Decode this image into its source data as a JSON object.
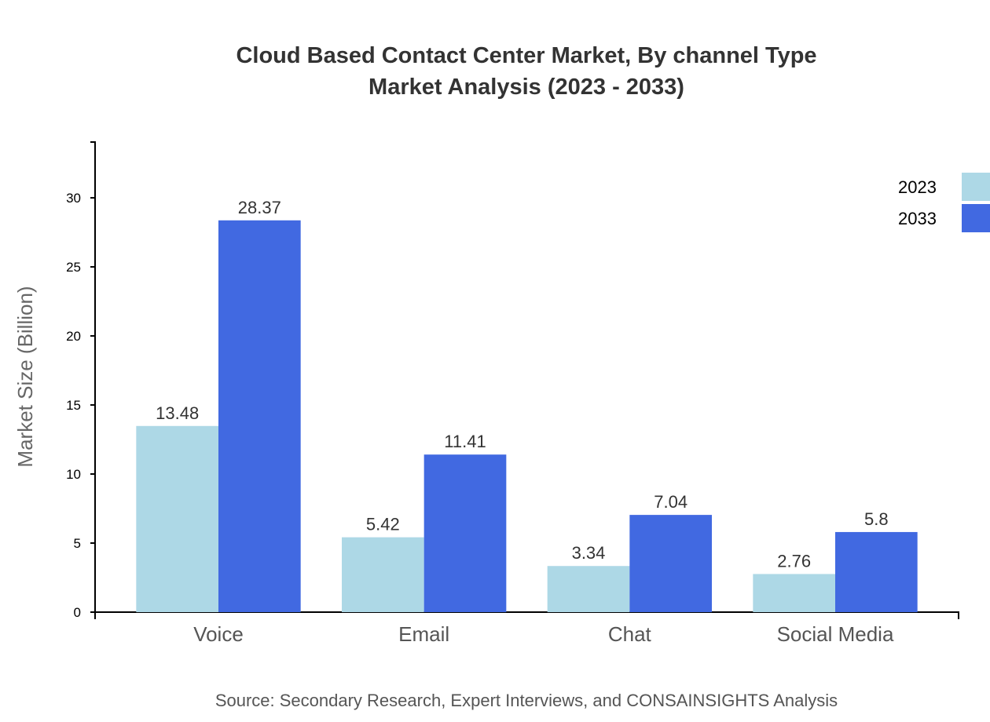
{
  "chart_data": {
    "type": "bar",
    "title": [
      "Cloud Based Contact Center Market, By channel Type",
      "Market Analysis (2023 - 2033)"
    ],
    "xlabel": "",
    "ylabel": "Market Size (Billion)",
    "ylim": [
      0,
      34.04
    ],
    "yticks": [
      0,
      5,
      10,
      15,
      20,
      25,
      30
    ],
    "categories": [
      "Voice",
      "Email",
      "Chat",
      "Social Media"
    ],
    "series": [
      {
        "name": "2023",
        "color": "#add8e6",
        "values": [
          13.48,
          5.42,
          3.34,
          2.76
        ]
      },
      {
        "name": "2033",
        "color": "#4169e1",
        "values": [
          28.37,
          11.41,
          7.04,
          5.8
        ]
      }
    ],
    "legend": "top-right",
    "grid": false,
    "source": "Source: Secondary Research, Expert Interviews, and CONSAINSIGHTS Analysis"
  }
}
